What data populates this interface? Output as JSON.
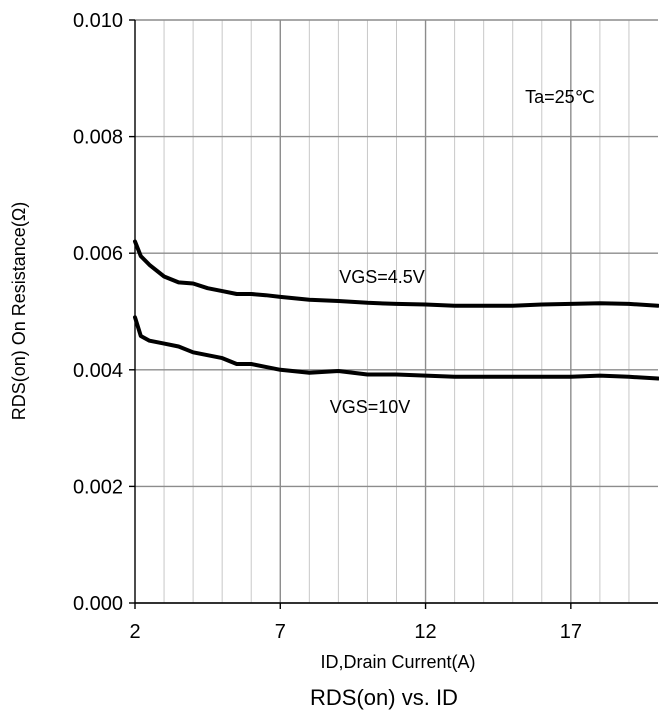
{
  "chart_data": {
    "type": "line",
    "title": "RDS(on) vs. ID",
    "xlabel": "ID,Drain Current(A)",
    "ylabel": "RDS(on) On Resistance(Ω)",
    "xlim": [
      2,
      20
    ],
    "ylim": [
      0,
      0.01
    ],
    "x_ticks": [
      "2",
      "7",
      "12",
      "17"
    ],
    "y_ticks": [
      "0.000",
      "0.002",
      "0.004",
      "0.006",
      "0.008",
      "0.010"
    ],
    "grid": true,
    "annotations": [
      "Ta=25℃"
    ],
    "series": [
      {
        "name": "VGS=4.5V",
        "x": [
          2,
          2.2,
          2.5,
          3,
          3.5,
          4,
          4.5,
          5,
          5.5,
          6,
          6.5,
          7,
          8,
          9,
          10,
          11,
          12,
          13,
          14,
          15,
          16,
          17,
          18,
          19,
          20
        ],
        "y": [
          0.0062,
          0.00595,
          0.0058,
          0.0056,
          0.0055,
          0.00548,
          0.0054,
          0.00535,
          0.0053,
          0.0053,
          0.00528,
          0.00525,
          0.0052,
          0.00518,
          0.00515,
          0.00513,
          0.00512,
          0.0051,
          0.0051,
          0.0051,
          0.00512,
          0.00513,
          0.00514,
          0.00513,
          0.0051
        ]
      },
      {
        "name": "VGS=10V",
        "x": [
          2,
          2.2,
          2.5,
          3,
          3.5,
          4,
          4.5,
          5,
          5.5,
          6,
          6.5,
          7,
          8,
          9,
          10,
          11,
          12,
          13,
          14,
          15,
          16,
          17,
          18,
          19,
          20
        ],
        "y": [
          0.0049,
          0.00458,
          0.0045,
          0.00445,
          0.0044,
          0.0043,
          0.00425,
          0.0042,
          0.0041,
          0.0041,
          0.00405,
          0.004,
          0.00395,
          0.00398,
          0.00392,
          0.00392,
          0.0039,
          0.00388,
          0.00388,
          0.00388,
          0.00388,
          0.00388,
          0.0039,
          0.00388,
          0.00385
        ]
      }
    ]
  }
}
